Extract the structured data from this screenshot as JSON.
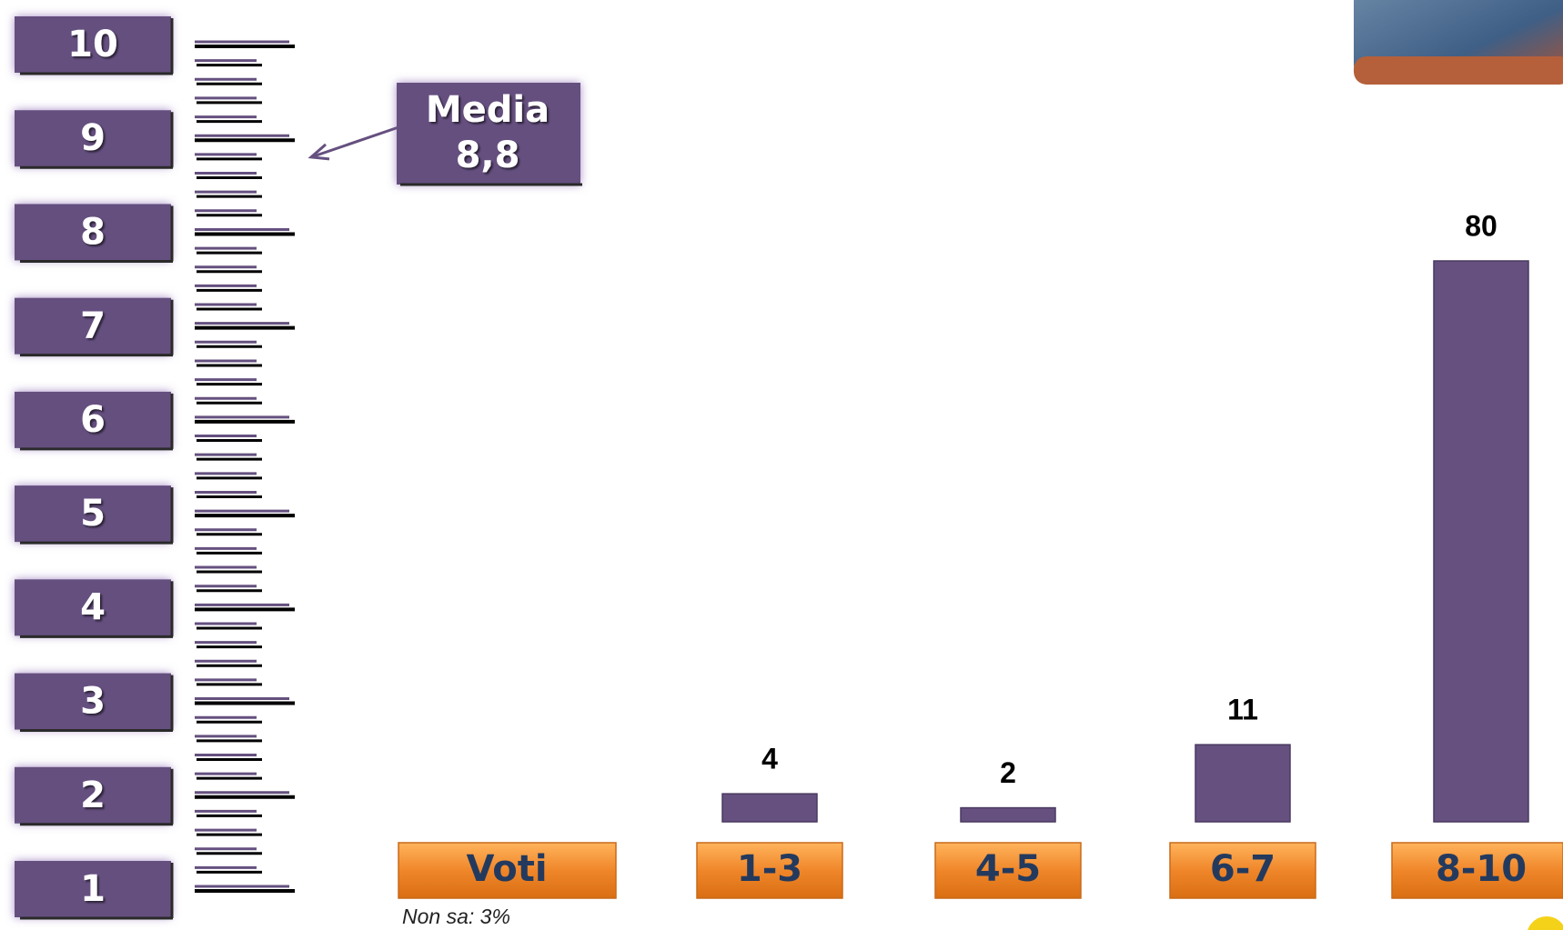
{
  "chart_data": {
    "type": "bar",
    "scale": [
      1,
      2,
      3,
      4,
      5,
      6,
      7,
      8,
      9,
      10
    ],
    "mean_title": "Media",
    "mean": {
      "value": 8.8,
      "label": "8,8"
    },
    "axis_label": "Voti",
    "categories": [
      "1-3",
      "4-5",
      "6-7",
      "8-10"
    ],
    "values": [
      4,
      2,
      11,
      80
    ],
    "color": "#65507f",
    "category_color": "#f0862a",
    "note": "Non sa: 3%"
  }
}
